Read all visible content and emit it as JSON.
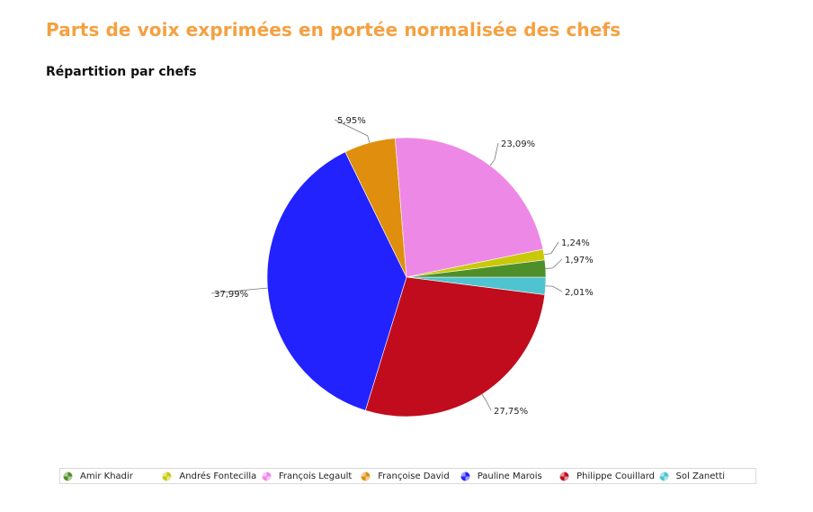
{
  "header": {
    "title": "Parts de voix exprimées en portée normalisée des chefs",
    "subtitle": "Répartition par chefs"
  },
  "chart_data": {
    "type": "pie",
    "title": "Répartition par chefs",
    "slices": [
      {
        "name": "Amir Khadir",
        "value": 1.97,
        "label": "1,97%",
        "color": "#4f8f2a"
      },
      {
        "name": "Andrés Fontecilla",
        "value": 1.24,
        "label": "1,24%",
        "color": "#c9c90a"
      },
      {
        "name": "François Legault",
        "value": 23.09,
        "label": "23,09%",
        "color": "#ee88e6"
      },
      {
        "name": "Françoise David",
        "value": 5.95,
        "label": "5,95%",
        "color": "#df8f0d"
      },
      {
        "name": "Pauline Marois",
        "value": 37.99,
        "label": "37,99%",
        "color": "#2222ff"
      },
      {
        "name": "Philippe Couillard",
        "value": 27.75,
        "label": "27,75%",
        "color": "#c00c1c"
      },
      {
        "name": "Sol Zanetti",
        "value": 2.01,
        "label": "2,01%",
        "color": "#4fc3cf"
      }
    ],
    "legend": "bottom"
  }
}
